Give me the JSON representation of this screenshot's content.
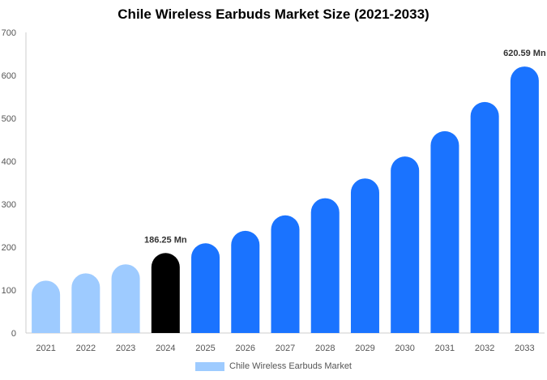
{
  "chart_data": {
    "type": "bar",
    "title": "Chile Wireless Earbuds Market Size (2021-2033)",
    "xlabel": "",
    "ylabel": "",
    "categories": [
      "2021",
      "2022",
      "2023",
      "2024",
      "2025",
      "2026",
      "2027",
      "2028",
      "2029",
      "2030",
      "2031",
      "2032",
      "2033"
    ],
    "series": [
      {
        "name": "Chile Wireless Earbuds Market",
        "values": [
          122,
          139,
          160,
          186.25,
          209,
          238,
          274,
          314,
          360,
          411,
          470,
          538,
          620.59
        ]
      }
    ],
    "ylim": [
      0,
      700
    ],
    "yticks": [
      0,
      100,
      200,
      300,
      400,
      500,
      600,
      700
    ],
    "grid": false,
    "legend_position": "bottom",
    "data_labels": [
      {
        "category": "2024",
        "text": "186.25 Mn"
      },
      {
        "category": "2033",
        "text": "620.59 Mn"
      }
    ],
    "colors": {
      "historical": "#9ecbff",
      "base_year": "#000000",
      "forecast": "#1a73ff",
      "legend": "#9ecbff",
      "axis": "#cccccc"
    },
    "historical_categories": [
      "2021",
      "2022",
      "2023"
    ],
    "base_year_category": "2024"
  }
}
